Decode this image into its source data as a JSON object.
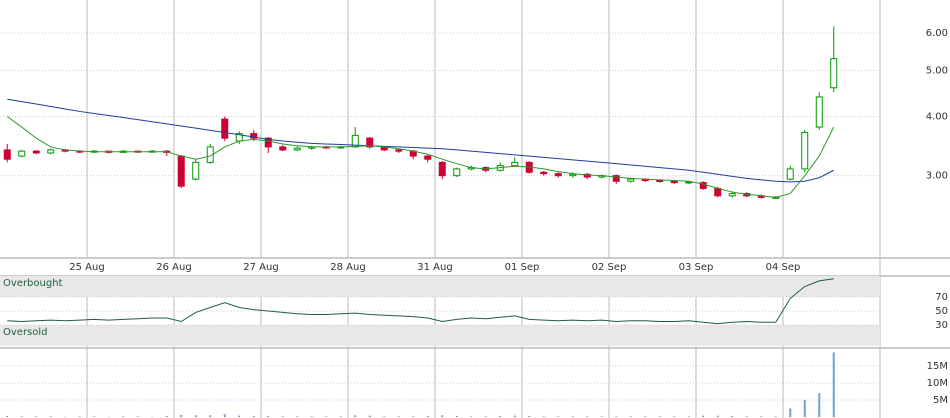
{
  "chart_data": [
    {
      "type": "candlestick",
      "log_scale": true,
      "ylim": [
        2.01,
        7.05
      ],
      "yticks": [
        {
          "value": 3,
          "label": "3.00"
        },
        {
          "value": 4,
          "label": "4.00"
        },
        {
          "value": 5,
          "label": "5.00"
        },
        {
          "value": 6,
          "label": "6.00"
        }
      ],
      "up_color": "#009900",
      "down_color": "#cc0033",
      "categories": [
        null,
        null,
        null,
        null,
        null,
        null,
        "25 Aug",
        null,
        null,
        null,
        null,
        null,
        "26 Aug",
        null,
        null,
        null,
        null,
        null,
        "27 Aug",
        null,
        null,
        null,
        null,
        null,
        "28 Aug",
        null,
        null,
        null,
        null,
        null,
        "31 Aug",
        null,
        null,
        null,
        null,
        null,
        "01 Sep",
        null,
        null,
        null,
        null,
        null,
        "02 Sep",
        null,
        null,
        null,
        null,
        null,
        "03 Sep",
        null,
        null,
        null,
        null,
        null,
        "04 Sep",
        null,
        null,
        null
      ],
      "open": [
        3.4,
        3.3,
        3.38,
        3.35,
        3.4,
        3.38,
        3.37,
        3.38,
        3.36,
        3.38,
        3.37,
        3.38,
        3.3,
        2.95,
        3.2,
        3.95,
        3.55,
        3.68,
        3.6,
        3.45,
        3.4,
        3.43,
        3.45,
        3.44,
        3.45,
        3.6,
        3.45,
        3.4,
        3.38,
        3.3,
        3.2,
        3.0,
        3.1,
        3.12,
        3.08,
        3.15,
        3.2,
        3.05,
        3.03,
        3.0,
        3.02,
        2.98,
        3.0,
        2.92,
        2.95,
        2.93,
        2.92,
        2.9,
        2.9,
        2.82,
        2.72,
        2.75,
        2.72,
        2.7,
        2.95,
        3.1,
        3.8,
        4.6
      ],
      "high": [
        3.5,
        3.4,
        3.4,
        3.42,
        3.42,
        3.4,
        3.4,
        3.39,
        3.4,
        3.39,
        3.4,
        3.4,
        3.32,
        3.25,
        3.5,
        4.0,
        3.72,
        3.75,
        3.62,
        3.48,
        3.46,
        3.47,
        3.47,
        3.47,
        3.8,
        3.62,
        3.46,
        3.42,
        3.4,
        3.32,
        3.22,
        3.12,
        3.15,
        3.14,
        3.2,
        3.28,
        3.22,
        3.07,
        3.05,
        3.05,
        3.04,
        3.02,
        3.02,
        2.97,
        2.96,
        2.95,
        2.94,
        2.93,
        2.92,
        2.84,
        2.78,
        2.77,
        2.74,
        2.72,
        3.15,
        3.75,
        4.5,
        6.2
      ],
      "low": [
        3.2,
        3.28,
        3.33,
        3.33,
        3.36,
        3.35,
        3.35,
        3.34,
        3.35,
        3.35,
        3.36,
        3.3,
        2.82,
        2.93,
        3.18,
        3.55,
        3.5,
        3.55,
        3.35,
        3.38,
        3.38,
        3.4,
        3.42,
        3.42,
        3.44,
        3.42,
        3.38,
        3.35,
        3.25,
        3.2,
        2.95,
        2.98,
        3.08,
        3.05,
        3.06,
        3.14,
        3.03,
        3.0,
        2.97,
        2.97,
        2.95,
        2.96,
        2.88,
        2.9,
        2.91,
        2.9,
        2.88,
        2.88,
        2.8,
        2.7,
        2.7,
        2.7,
        2.68,
        2.68,
        2.93,
        3.05,
        3.75,
        4.5
      ],
      "close": [
        3.25,
        3.38,
        3.35,
        3.4,
        3.38,
        3.37,
        3.38,
        3.36,
        3.38,
        3.37,
        3.38,
        3.36,
        2.85,
        3.2,
        3.45,
        3.6,
        3.68,
        3.6,
        3.45,
        3.4,
        3.43,
        3.45,
        3.44,
        3.45,
        3.65,
        3.45,
        3.4,
        3.38,
        3.3,
        3.25,
        3.0,
        3.1,
        3.12,
        3.08,
        3.15,
        3.2,
        3.05,
        3.03,
        3.0,
        3.02,
        2.98,
        3.0,
        2.92,
        2.95,
        2.93,
        2.92,
        2.9,
        2.91,
        2.82,
        2.72,
        2.75,
        2.72,
        2.7,
        2.7,
        3.1,
        3.7,
        4.4,
        5.3
      ],
      "lines": [
        {
          "color": "#1f3f9f",
          "values": [
            4.35,
            4.3,
            4.25,
            4.2,
            4.15,
            4.1,
            4.06,
            4.02,
            3.98,
            3.94,
            3.9,
            3.86,
            3.82,
            3.78,
            3.74,
            3.7,
            3.66,
            3.62,
            3.58,
            3.55,
            3.53,
            3.51,
            3.5,
            3.49,
            3.48,
            3.47,
            3.46,
            3.45,
            3.44,
            3.43,
            3.42,
            3.4,
            3.38,
            3.36,
            3.34,
            3.32,
            3.3,
            3.28,
            3.26,
            3.24,
            3.22,
            3.2,
            3.18,
            3.16,
            3.14,
            3.12,
            3.1,
            3.08,
            3.05,
            3.02,
            2.99,
            2.96,
            2.94,
            2.92,
            2.91,
            2.92,
            2.97,
            3.08
          ]
        },
        {
          "color": "#2a9a2a",
          "values": [
            4.0,
            3.8,
            3.6,
            3.45,
            3.4,
            3.38,
            3.37,
            3.37,
            3.37,
            3.37,
            3.37,
            3.37,
            3.3,
            3.25,
            3.3,
            3.45,
            3.55,
            3.58,
            3.55,
            3.5,
            3.47,
            3.45,
            3.45,
            3.45,
            3.46,
            3.47,
            3.45,
            3.42,
            3.38,
            3.33,
            3.25,
            3.18,
            3.12,
            3.1,
            3.12,
            3.14,
            3.13,
            3.1,
            3.06,
            3.03,
            3.01,
            3.0,
            2.98,
            2.96,
            2.95,
            2.94,
            2.93,
            2.92,
            2.88,
            2.82,
            2.77,
            2.74,
            2.72,
            2.7,
            2.75,
            3.0,
            3.3,
            3.8
          ]
        }
      ]
    },
    {
      "type": "line",
      "ylim": [
        0,
        100
      ],
      "yticks": [
        30,
        50,
        70
      ],
      "color": "#1f5f3f",
      "bands": [
        {
          "label": "Overbought",
          "range": [
            70,
            100
          ]
        },
        {
          "label": "Oversold",
          "range": [
            0,
            30
          ]
        }
      ],
      "values": [
        36,
        35,
        36,
        37,
        36,
        37,
        38,
        37,
        38,
        39,
        40,
        40,
        35,
        48,
        55,
        62,
        55,
        52,
        50,
        48,
        46,
        45,
        45,
        46,
        47,
        45,
        44,
        43,
        42,
        40,
        35,
        38,
        40,
        39,
        41,
        43,
        38,
        37,
        36,
        37,
        36,
        37,
        35,
        36,
        36,
        35,
        35,
        36,
        34,
        32,
        34,
        35,
        34,
        34,
        68,
        85,
        93,
        96
      ]
    },
    {
      "type": "bar",
      "ylim": [
        0,
        20000000
      ],
      "color": "#6f9fd8",
      "yticks": [
        {
          "value": 5000000,
          "label": "5M"
        },
        {
          "value": 10000000,
          "label": "10M"
        },
        {
          "value": 15000000,
          "label": "15M"
        }
      ],
      "values": [
        300000,
        200000,
        200000,
        200000,
        100000,
        200000,
        200000,
        100000,
        200000,
        200000,
        100000,
        300000,
        600000,
        500000,
        500000,
        800000,
        400000,
        300000,
        300000,
        200000,
        200000,
        200000,
        200000,
        200000,
        500000,
        400000,
        200000,
        200000,
        200000,
        300000,
        500000,
        300000,
        200000,
        200000,
        300000,
        400000,
        300000,
        200000,
        200000,
        200000,
        200000,
        200000,
        200000,
        200000,
        200000,
        200000,
        200000,
        200000,
        400000,
        400000,
        300000,
        200000,
        200000,
        200000,
        2500000,
        5000000,
        7000000,
        19000000
      ]
    }
  ]
}
